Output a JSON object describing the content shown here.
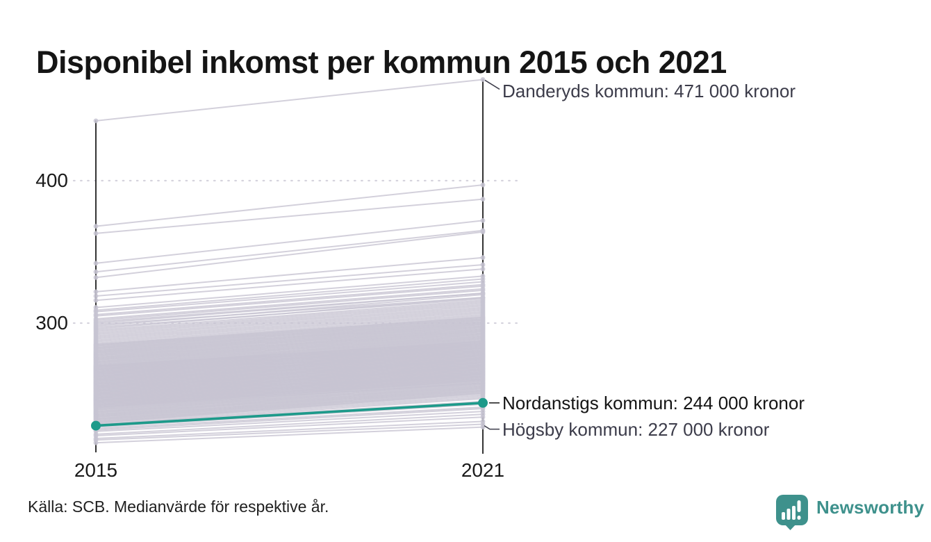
{
  "page": {
    "title": "Disponibel inkomst per kommun 2015 och 2021",
    "source_note": "Källa: SCB. Medianvärde för respektive år.",
    "brand": {
      "name": "Newsworthy",
      "color": "#3e918c",
      "icon": "newsworthy-speech-bubble-bar-chart-icon"
    }
  },
  "chart_data": {
    "type": "line",
    "variant": "slopegraph",
    "title": "Disponibel inkomst per kommun 2015 och 2021",
    "x_labels": [
      "2015",
      "2021"
    ],
    "unit": "tusen kronor",
    "yticks": [
      400,
      300
    ],
    "ytick_labels": [
      "400",
      "300"
    ],
    "ylim": [
      210,
      475
    ],
    "grid": "dotted-horizontal",
    "legend": "none",
    "colors": {
      "line": "#c7c4d2",
      "highlight": "#1d9a8a",
      "axis": "#111111",
      "grid": "#d5d3dd",
      "annotation_text": "#3c3c4a",
      "annotation_emphasis": "#141414"
    },
    "highlight_series": {
      "name": "Nordanstigs kommun",
      "values": [
        228,
        244
      ]
    },
    "annotations": [
      {
        "label": "Danderyds kommun: 471 000 kronor",
        "value": 471,
        "emphasis": false
      },
      {
        "label": "Nordanstigs kommun: 244 000 kronor",
        "value": 244,
        "emphasis": true
      },
      {
        "label": "Högsby kommun: 227 000 kronor",
        "value": 227,
        "emphasis": false
      }
    ],
    "series_format": [
      "value_2015",
      "value_2021"
    ],
    "series": [
      [
        442,
        471
      ],
      [
        368,
        397
      ],
      [
        363,
        387
      ],
      [
        342,
        372
      ],
      [
        336,
        365
      ],
      [
        332,
        364
      ],
      [
        322,
        346
      ],
      [
        319,
        341
      ],
      [
        316,
        338
      ],
      [
        311,
        333
      ],
      [
        309,
        331
      ],
      [
        308,
        329
      ],
      [
        306,
        327
      ],
      [
        305,
        326
      ],
      [
        303,
        324
      ],
      [
        302,
        323
      ],
      [
        301,
        321
      ],
      [
        300,
        321
      ],
      [
        299,
        318
      ],
      [
        298,
        320
      ],
      [
        297,
        317
      ],
      [
        296,
        318
      ],
      [
        295,
        316
      ],
      [
        294,
        315
      ],
      [
        293,
        314
      ],
      [
        292,
        313
      ],
      [
        291,
        312
      ],
      [
        290,
        311
      ],
      [
        289,
        310
      ],
      [
        288,
        309
      ],
      [
        287,
        308
      ],
      [
        286,
        307
      ],
      [
        285,
        306
      ],
      [
        285,
        304
      ],
      [
        284,
        305
      ],
      [
        284,
        303
      ],
      [
        283,
        304
      ],
      [
        283,
        302
      ],
      [
        282,
        303
      ],
      [
        282,
        301
      ],
      [
        281,
        302
      ],
      [
        281,
        300
      ],
      [
        280,
        301
      ],
      [
        280,
        299
      ],
      [
        279,
        300
      ],
      [
        279,
        298
      ],
      [
        278,
        299
      ],
      [
        278,
        297
      ],
      [
        277,
        298
      ],
      [
        277,
        296
      ],
      [
        276,
        297
      ],
      [
        276,
        295
      ],
      [
        275,
        296
      ],
      [
        275,
        294
      ],
      [
        274,
        295
      ],
      [
        274,
        293
      ],
      [
        273,
        294
      ],
      [
        273,
        292
      ],
      [
        272,
        293
      ],
      [
        272,
        291
      ],
      [
        271,
        292
      ],
      [
        271,
        290
      ],
      [
        270,
        291
      ],
      [
        270,
        289
      ],
      [
        270,
        287
      ],
      [
        269,
        290
      ],
      [
        269,
        288
      ],
      [
        269,
        286
      ],
      [
        268,
        289
      ],
      [
        268,
        287
      ],
      [
        268,
        285
      ],
      [
        267,
        288
      ],
      [
        267,
        286
      ],
      [
        267,
        284
      ],
      [
        266,
        287
      ],
      [
        266,
        285
      ],
      [
        266,
        283
      ],
      [
        265,
        286
      ],
      [
        265,
        284
      ],
      [
        265,
        282
      ],
      [
        264,
        285
      ],
      [
        264,
        283
      ],
      [
        264,
        281
      ],
      [
        263,
        284
      ],
      [
        263,
        282
      ],
      [
        263,
        280
      ],
      [
        262,
        283
      ],
      [
        262,
        281
      ],
      [
        262,
        279
      ],
      [
        261,
        282
      ],
      [
        261,
        280
      ],
      [
        261,
        278
      ],
      [
        260,
        281
      ],
      [
        260,
        279
      ],
      [
        260,
        277
      ],
      [
        259,
        280
      ],
      [
        259,
        278
      ],
      [
        259,
        276
      ],
      [
        258,
        279
      ],
      [
        258,
        277
      ],
      [
        258,
        275
      ],
      [
        257,
        278
      ],
      [
        257,
        276
      ],
      [
        257,
        274
      ],
      [
        256,
        277
      ],
      [
        256,
        275
      ],
      [
        256,
        273
      ],
      [
        255,
        276
      ],
      [
        255,
        274
      ],
      [
        255,
        272
      ],
      [
        254,
        275
      ],
      [
        254,
        273
      ],
      [
        254,
        271
      ],
      [
        253,
        274
      ],
      [
        253,
        272
      ],
      [
        253,
        270
      ],
      [
        252,
        273
      ],
      [
        252,
        271
      ],
      [
        252,
        269
      ],
      [
        251,
        272
      ],
      [
        251,
        270
      ],
      [
        251,
        268
      ],
      [
        250,
        271
      ],
      [
        250,
        269
      ],
      [
        250,
        267
      ],
      [
        249,
        270
      ],
      [
        249,
        268
      ],
      [
        249,
        266
      ],
      [
        248,
        269
      ],
      [
        248,
        267
      ],
      [
        248,
        265
      ],
      [
        247,
        268
      ],
      [
        247,
        266
      ],
      [
        247,
        264
      ],
      [
        246,
        267
      ],
      [
        246,
        265
      ],
      [
        246,
        263
      ],
      [
        245,
        266
      ],
      [
        245,
        264
      ],
      [
        245,
        262
      ],
      [
        244,
        265
      ],
      [
        244,
        263
      ],
      [
        244,
        261
      ],
      [
        243,
        264
      ],
      [
        243,
        262
      ],
      [
        243,
        260
      ],
      [
        242,
        263
      ],
      [
        242,
        261
      ],
      [
        242,
        259
      ],
      [
        241,
        262
      ],
      [
        241,
        260
      ],
      [
        241,
        258
      ],
      [
        240,
        261
      ],
      [
        240,
        258
      ],
      [
        239,
        260
      ],
      [
        239,
        257
      ],
      [
        238,
        259
      ],
      [
        238,
        256
      ],
      [
        237,
        258
      ],
      [
        237,
        255
      ],
      [
        236,
        257
      ],
      [
        236,
        254
      ],
      [
        235,
        256
      ],
      [
        235,
        253
      ],
      [
        234,
        255
      ],
      [
        234,
        252
      ],
      [
        233,
        254
      ],
      [
        233,
        251
      ],
      [
        232,
        253
      ],
      [
        232,
        250
      ],
      [
        231,
        252
      ],
      [
        231,
        249
      ],
      [
        230,
        251
      ],
      [
        230,
        248
      ],
      [
        229,
        247
      ],
      [
        229,
        245
      ],
      [
        227,
        243
      ],
      [
        226,
        241
      ],
      [
        225,
        240
      ],
      [
        224,
        238
      ],
      [
        222,
        236
      ],
      [
        221,
        234
      ],
      [
        219,
        231
      ],
      [
        218,
        229
      ],
      [
        216,
        227
      ]
    ]
  }
}
